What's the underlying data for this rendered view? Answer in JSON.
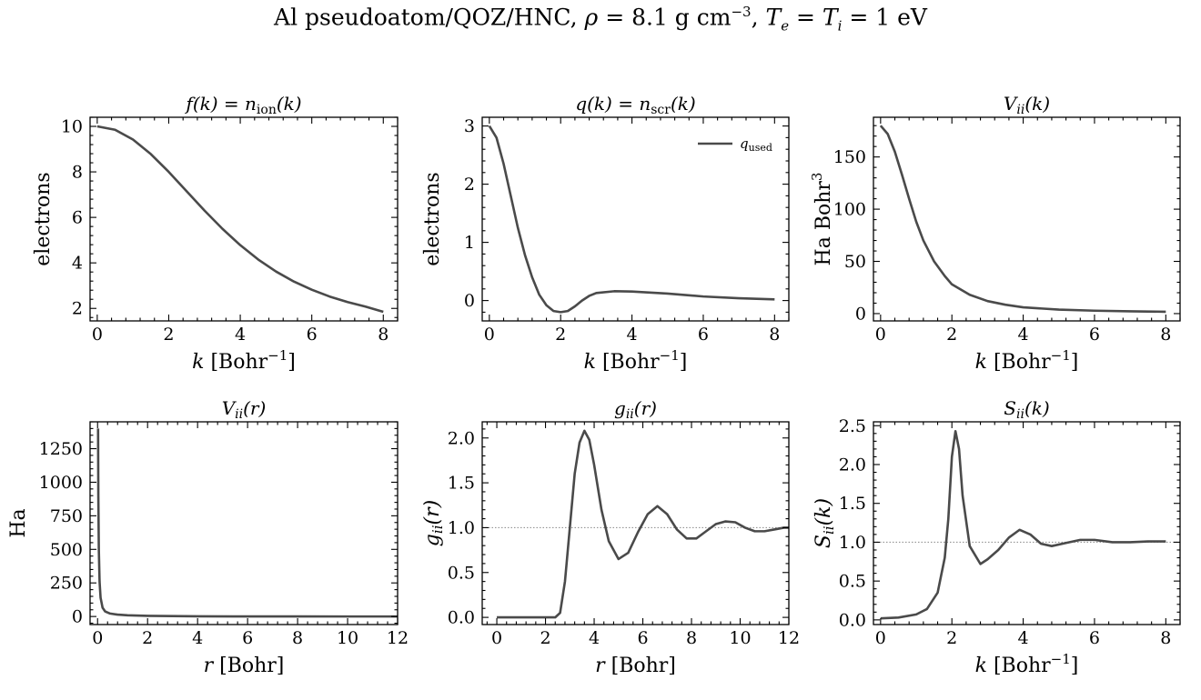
{
  "figure": {
    "title_main": "Al pseudoatom/QOZ/HNC, ",
    "title_rho": "ρ",
    "title_rho_val": " = 8.1 g cm",
    "title_rho_exp": "−3",
    "title_temps": ", ",
    "title_te": "T",
    "title_te_sub": "e",
    "title_eq": " = ",
    "title_ti": "T",
    "title_ti_sub": "i",
    "title_tail": " = 1 eV"
  },
  "colors": {
    "line": "#4a4a4a",
    "reference_line": "#888888",
    "axis": "#000000"
  },
  "chart_data": [
    {
      "id": "nion",
      "type": "line",
      "title_base": "f(k) = n",
      "title_sub": "ion",
      "title_end": "(k)",
      "xlabel_var": "k",
      "xlabel_unit": " [Bohr",
      "xlabel_exp": "−1",
      "xlabel_close": "]",
      "ylabel": "electrons",
      "xlim": [
        -0.2,
        8.4
      ],
      "ylim": [
        1.45,
        10.4
      ],
      "xticks": [
        0,
        2,
        4,
        6,
        8
      ],
      "yticks": [
        2,
        4,
        6,
        8,
        10
      ],
      "series": [
        {
          "x": [
            0,
            0.5,
            1,
            1.5,
            2,
            2.5,
            3,
            3.5,
            4,
            4.5,
            5,
            5.5,
            6,
            6.5,
            7,
            7.5,
            8
          ],
          "y": [
            10,
            9.85,
            9.42,
            8.78,
            8.0,
            7.15,
            6.3,
            5.5,
            4.78,
            4.15,
            3.62,
            3.18,
            2.82,
            2.52,
            2.28,
            2.08,
            1.85
          ]
        }
      ]
    },
    {
      "id": "nscr",
      "type": "line",
      "title_base": "q(k) = n",
      "title_sub": "scr",
      "title_end": "(k)",
      "xlabel_var": "k",
      "xlabel_unit": " [Bohr",
      "xlabel_exp": "−1",
      "xlabel_close": "]",
      "ylabel": "electrons",
      "xlim": [
        -0.2,
        8.4
      ],
      "ylim": [
        -0.35,
        3.15
      ],
      "xticks": [
        0,
        2,
        4,
        6,
        8
      ],
      "yticks": [
        0,
        1,
        2,
        3
      ],
      "legend": {
        "label_base": "q",
        "label_sub": "used"
      },
      "series": [
        {
          "x": [
            0,
            0.2,
            0.4,
            0.6,
            0.8,
            1.0,
            1.2,
            1.4,
            1.6,
            1.8,
            2.0,
            2.2,
            2.4,
            2.6,
            2.8,
            3.0,
            3.5,
            4.0,
            5.0,
            6.0,
            7.0,
            8.0
          ],
          "y": [
            3.0,
            2.8,
            2.35,
            1.8,
            1.25,
            0.78,
            0.4,
            0.1,
            -0.08,
            -0.18,
            -0.2,
            -0.18,
            -0.1,
            0.0,
            0.08,
            0.13,
            0.16,
            0.155,
            0.12,
            0.07,
            0.04,
            0.02
          ]
        }
      ]
    },
    {
      "id": "vk",
      "type": "line",
      "title_base": "V",
      "title_sub": "ii",
      "title_end": "(k)",
      "xlabel_var": "k",
      "xlabel_unit": " [Bohr",
      "xlabel_exp": "−1",
      "xlabel_close": "]",
      "ylabel": "Ha Bohr",
      "ylabel_exp": "3",
      "xlim": [
        -0.2,
        8.4
      ],
      "ylim": [
        -7,
        188
      ],
      "xticks": [
        0,
        2,
        4,
        6,
        8
      ],
      "yticks": [
        0,
        50,
        100,
        150
      ],
      "series": [
        {
          "x": [
            0,
            0.2,
            0.4,
            0.6,
            0.8,
            1.0,
            1.2,
            1.5,
            1.8,
            2.0,
            2.5,
            3.0,
            3.5,
            4.0,
            5.0,
            6.0,
            7.0,
            8.0
          ],
          "y": [
            180,
            172,
            155,
            133,
            110,
            88,
            70,
            50,
            36,
            28,
            18,
            12,
            8.5,
            6,
            3.8,
            2.8,
            2.2,
            1.8
          ]
        }
      ]
    },
    {
      "id": "vr",
      "type": "line",
      "title_base": "V",
      "title_sub": "ii",
      "title_end": "(r)",
      "xlabel_var": "r",
      "xlabel_unit": " [Bohr]",
      "ylabel": "Ha",
      "xlim": [
        -0.3,
        12.0
      ],
      "ylim": [
        -60,
        1450
      ],
      "xticks": [
        0,
        2,
        4,
        6,
        8,
        10,
        12
      ],
      "yticks": [
        0,
        250,
        500,
        750,
        1000,
        1250
      ],
      "series": [
        {
          "x": [
            0.02,
            0.03,
            0.05,
            0.08,
            0.12,
            0.2,
            0.3,
            0.5,
            0.8,
            1.2,
            2,
            4,
            6,
            8,
            10,
            12
          ],
          "y": [
            1400,
            900,
            500,
            260,
            140,
            65,
            38,
            22,
            14,
            9,
            5,
            1.5,
            0.5,
            0.2,
            0.1,
            0.05
          ]
        }
      ]
    },
    {
      "id": "gr",
      "type": "line",
      "title_base": "g",
      "title_sub": "ii",
      "title_end": "(r)",
      "xlabel_var": "r",
      "xlabel_unit": " [Bohr]",
      "ylabel": "g",
      "ylabel_sub": "ii",
      "ylabel_end": "(r)",
      "xlim": [
        -0.6,
        12.0
      ],
      "ylim": [
        -0.08,
        2.18
      ],
      "xticks": [
        0,
        2,
        4,
        6,
        8,
        10,
        12
      ],
      "yticks": [
        0.0,
        0.5,
        1.0,
        1.5,
        2.0
      ],
      "reference_y": 1.0,
      "series": [
        {
          "x": [
            0,
            1,
            2,
            2.4,
            2.6,
            2.8,
            3.0,
            3.2,
            3.4,
            3.6,
            3.8,
            4.0,
            4.3,
            4.6,
            5.0,
            5.4,
            5.8,
            6.2,
            6.6,
            7.0,
            7.4,
            7.8,
            8.2,
            8.6,
            9.0,
            9.4,
            9.8,
            10.2,
            10.6,
            11.0,
            11.4,
            11.8,
            12.0
          ],
          "y": [
            0,
            0,
            0,
            0.0,
            0.05,
            0.4,
            1.0,
            1.6,
            1.95,
            2.08,
            1.98,
            1.7,
            1.2,
            0.85,
            0.65,
            0.72,
            0.95,
            1.15,
            1.24,
            1.15,
            0.98,
            0.88,
            0.88,
            0.96,
            1.04,
            1.07,
            1.06,
            1.0,
            0.96,
            0.96,
            0.98,
            1.0,
            1.0
          ]
        }
      ]
    },
    {
      "id": "sk",
      "type": "line",
      "title_base": "S",
      "title_sub": "ii",
      "title_end": "(k)",
      "xlabel_var": "k",
      "xlabel_unit": " [Bohr",
      "xlabel_exp": "−1",
      "xlabel_close": "]",
      "ylabel": "S",
      "ylabel_sub": "ii",
      "ylabel_end": "(k)",
      "xlim": [
        -0.2,
        8.4
      ],
      "ylim": [
        -0.06,
        2.55
      ],
      "xticks": [
        0,
        2,
        4,
        6,
        8
      ],
      "yticks": [
        0.0,
        0.5,
        1.0,
        1.5,
        2.0,
        2.5
      ],
      "reference_y": 1.0,
      "series": [
        {
          "x": [
            0,
            0.5,
            1.0,
            1.3,
            1.6,
            1.8,
            1.9,
            2.0,
            2.1,
            2.2,
            2.3,
            2.5,
            2.8,
            3.0,
            3.3,
            3.6,
            3.9,
            4.2,
            4.5,
            4.8,
            5.2,
            5.6,
            6.0,
            6.5,
            7.0,
            7.5,
            8.0
          ],
          "y": [
            0.02,
            0.03,
            0.07,
            0.14,
            0.35,
            0.8,
            1.3,
            2.1,
            2.43,
            2.2,
            1.6,
            0.95,
            0.72,
            0.78,
            0.9,
            1.06,
            1.16,
            1.1,
            0.98,
            0.95,
            0.99,
            1.03,
            1.03,
            1.0,
            1.0,
            1.01,
            1.01
          ]
        }
      ]
    }
  ]
}
